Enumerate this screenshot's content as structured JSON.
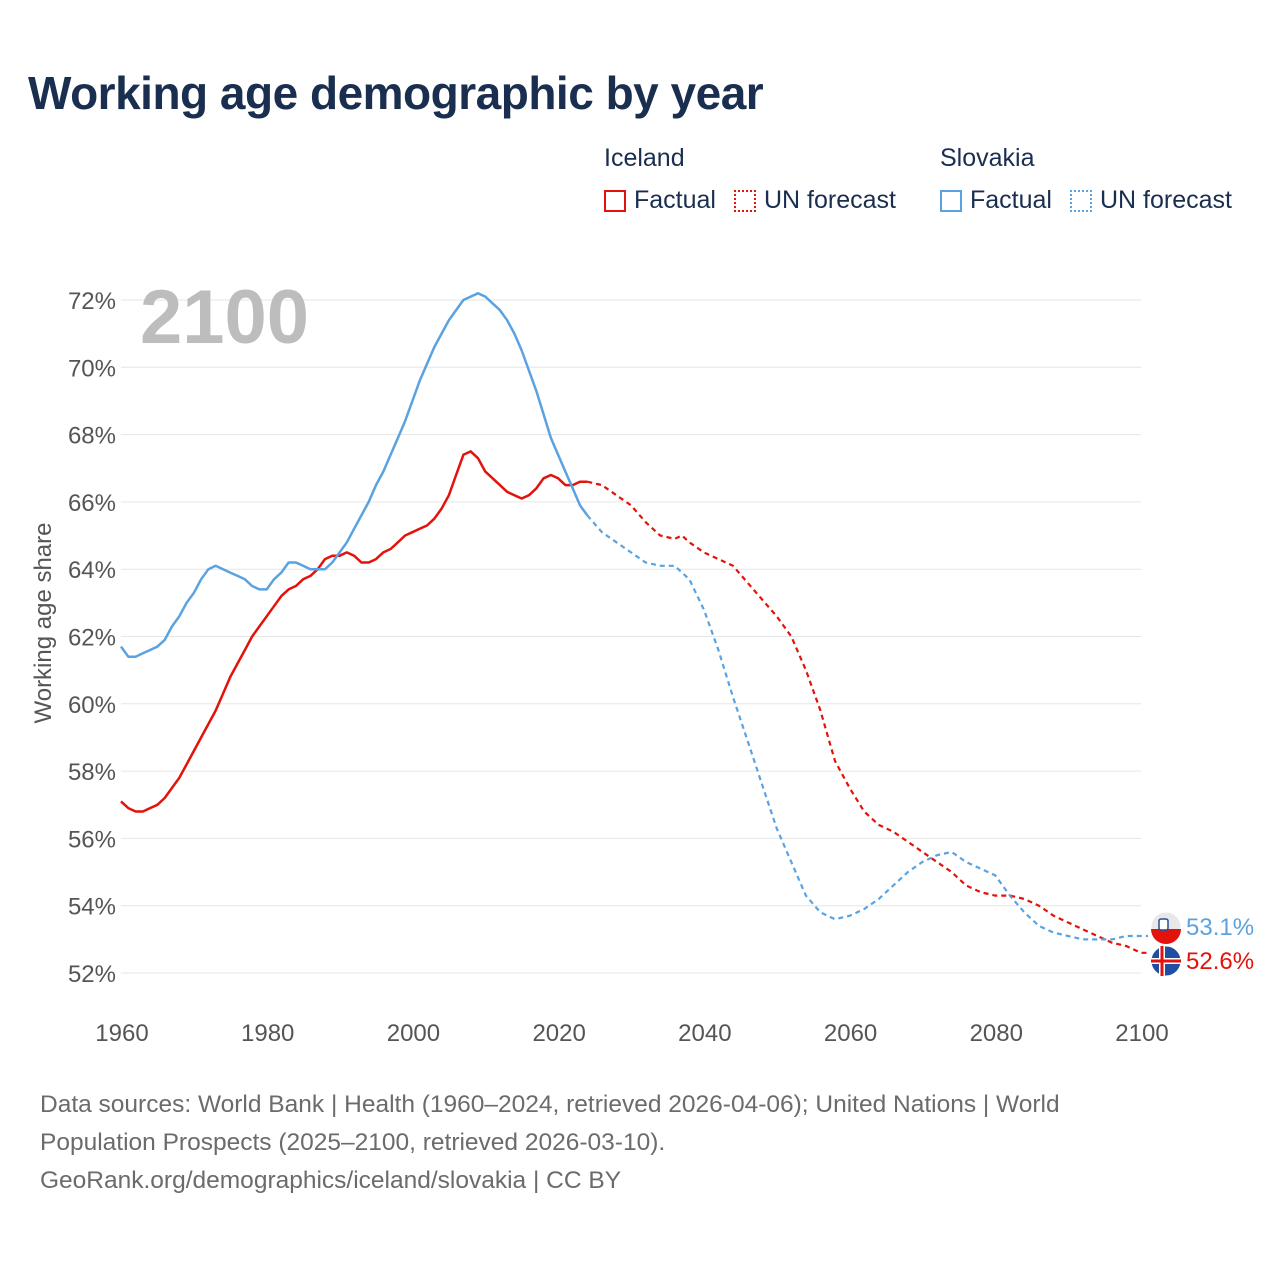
{
  "chart_data": {
    "type": "line",
    "title": "Working age demographic by year",
    "ylabel": "Working age share",
    "xlabel": "",
    "xlim": [
      1960,
      2100
    ],
    "ylim": [
      51,
      72.5
    ],
    "x_ticks": [
      1960,
      1980,
      2000,
      2020,
      2040,
      2060,
      2080,
      2100
    ],
    "y_ticks": [
      52,
      54,
      56,
      58,
      60,
      62,
      64,
      66,
      68,
      70,
      72
    ],
    "y_tick_labels": [
      "52%",
      "54%",
      "56%",
      "58%",
      "60%",
      "62%",
      "64%",
      "66%",
      "68%",
      "70%",
      "72%"
    ],
    "year_watermark": "2100",
    "series": [
      {
        "name": "Iceland",
        "color": "#e3120b",
        "end_label": "52.6%",
        "factual": {
          "label": "Factual",
          "x": [
            1960,
            1961,
            1962,
            1963,
            1964,
            1965,
            1966,
            1967,
            1968,
            1969,
            1970,
            1971,
            1972,
            1973,
            1974,
            1975,
            1976,
            1977,
            1978,
            1979,
            1980,
            1981,
            1982,
            1983,
            1984,
            1985,
            1986,
            1987,
            1988,
            1989,
            1990,
            1991,
            1992,
            1993,
            1994,
            1995,
            1996,
            1997,
            1998,
            1999,
            2000,
            2001,
            2002,
            2003,
            2004,
            2005,
            2006,
            2007,
            2008,
            2009,
            2010,
            2011,
            2012,
            2013,
            2014,
            2015,
            2016,
            2017,
            2018,
            2019,
            2020,
            2021,
            2022,
            2023,
            2024
          ],
          "values": [
            57.1,
            56.9,
            56.8,
            56.8,
            56.9,
            57.0,
            57.2,
            57.5,
            57.8,
            58.2,
            58.6,
            59.0,
            59.4,
            59.8,
            60.3,
            60.8,
            61.2,
            61.6,
            62.0,
            62.3,
            62.6,
            62.9,
            63.2,
            63.4,
            63.5,
            63.7,
            63.8,
            64.0,
            64.3,
            64.4,
            64.4,
            64.5,
            64.4,
            64.2,
            64.2,
            64.3,
            64.5,
            64.6,
            64.8,
            65.0,
            65.1,
            65.2,
            65.3,
            65.5,
            65.8,
            66.2,
            66.8,
            67.4,
            67.5,
            67.3,
            66.9,
            66.7,
            66.5,
            66.3,
            66.2,
            66.1,
            66.2,
            66.4,
            66.7,
            66.8,
            66.7,
            66.5,
            66.5,
            66.6,
            66.6
          ]
        },
        "forecast": {
          "label": "UN forecast",
          "x": [
            2024,
            2026,
            2028,
            2030,
            2032,
            2034,
            2036,
            2037,
            2038,
            2040,
            2042,
            2044,
            2046,
            2048,
            2050,
            2052,
            2054,
            2056,
            2058,
            2060,
            2062,
            2064,
            2066,
            2068,
            2070,
            2072,
            2074,
            2076,
            2078,
            2080,
            2082,
            2084,
            2086,
            2088,
            2090,
            2092,
            2094,
            2096,
            2098,
            2100
          ],
          "values": [
            66.6,
            66.5,
            66.2,
            65.9,
            65.4,
            65.0,
            64.9,
            65.0,
            64.8,
            64.5,
            64.3,
            64.1,
            63.6,
            63.1,
            62.6,
            62.0,
            61.0,
            59.8,
            58.3,
            57.5,
            56.8,
            56.4,
            56.2,
            55.9,
            55.6,
            55.3,
            55.0,
            54.6,
            54.4,
            54.3,
            54.3,
            54.2,
            54.0,
            53.7,
            53.5,
            53.3,
            53.1,
            52.9,
            52.8,
            52.6
          ]
        }
      },
      {
        "name": "Slovakia",
        "color": "#5aa2e0",
        "end_label": "53.1%",
        "factual": {
          "label": "Factual",
          "x": [
            1960,
            1961,
            1962,
            1963,
            1964,
            1965,
            1966,
            1967,
            1968,
            1969,
            1970,
            1971,
            1972,
            1973,
            1974,
            1975,
            1976,
            1977,
            1978,
            1979,
            1980,
            1981,
            1982,
            1983,
            1984,
            1985,
            1986,
            1987,
            1988,
            1989,
            1990,
            1991,
            1992,
            1993,
            1994,
            1995,
            1996,
            1997,
            1998,
            1999,
            2000,
            2001,
            2002,
            2003,
            2004,
            2005,
            2006,
            2007,
            2008,
            2009,
            2010,
            2011,
            2012,
            2013,
            2014,
            2015,
            2016,
            2017,
            2018,
            2019,
            2020,
            2021,
            2022,
            2023,
            2024
          ],
          "values": [
            61.7,
            61.4,
            61.4,
            61.5,
            61.6,
            61.7,
            61.9,
            62.3,
            62.6,
            63.0,
            63.3,
            63.7,
            64.0,
            64.1,
            64.0,
            63.9,
            63.8,
            63.7,
            63.5,
            63.4,
            63.4,
            63.7,
            63.9,
            64.2,
            64.2,
            64.1,
            64.0,
            64.0,
            64.0,
            64.2,
            64.5,
            64.8,
            65.2,
            65.6,
            66.0,
            66.5,
            66.9,
            67.4,
            67.9,
            68.4,
            69.0,
            69.6,
            70.1,
            70.6,
            71.0,
            71.4,
            71.7,
            72.0,
            72.1,
            72.2,
            72.1,
            71.9,
            71.7,
            71.4,
            71.0,
            70.5,
            69.9,
            69.3,
            68.6,
            67.9,
            67.4,
            66.9,
            66.4,
            65.9,
            65.6
          ]
        },
        "forecast": {
          "label": "UN forecast",
          "x": [
            2024,
            2026,
            2028,
            2030,
            2032,
            2034,
            2036,
            2038,
            2040,
            2042,
            2044,
            2046,
            2048,
            2050,
            2052,
            2054,
            2056,
            2058,
            2060,
            2062,
            2064,
            2066,
            2068,
            2070,
            2072,
            2074,
            2076,
            2078,
            2080,
            2082,
            2084,
            2086,
            2088,
            2090,
            2092,
            2094,
            2096,
            2098,
            2100
          ],
          "values": [
            65.6,
            65.1,
            64.8,
            64.5,
            64.2,
            64.1,
            64.1,
            63.7,
            62.8,
            61.6,
            60.2,
            58.9,
            57.6,
            56.3,
            55.3,
            54.3,
            53.8,
            53.6,
            53.7,
            53.9,
            54.2,
            54.6,
            55.0,
            55.3,
            55.5,
            55.6,
            55.3,
            55.1,
            54.9,
            54.3,
            53.8,
            53.4,
            53.2,
            53.1,
            53.0,
            53.0,
            53.0,
            53.1,
            53.1
          ]
        }
      }
    ]
  },
  "sources": {
    "line1": "Data sources: World Bank | Health (1960–2024, retrieved 2026-04-06); United Nations | World",
    "line2": "Population Prospects (2025–2100, retrieved 2026-03-10).",
    "line3": "GeoRank.org/demographics/iceland/slovakia | CC BY"
  }
}
